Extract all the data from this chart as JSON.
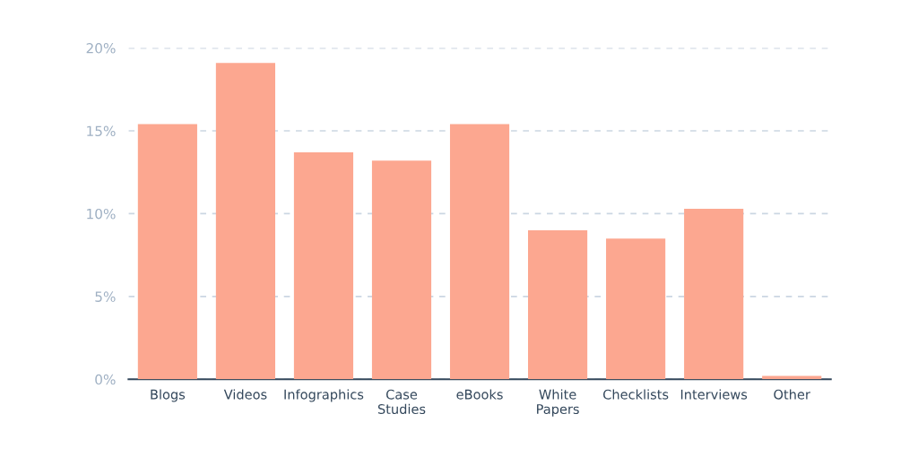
{
  "chart_data": {
    "type": "bar",
    "categories": [
      "Blogs",
      "Videos",
      "Infographics",
      "Case\nStudies",
      "eBooks",
      "White\nPapers",
      "Checklists",
      "Interviews",
      "Other"
    ],
    "values": [
      15.4,
      19.1,
      13.7,
      13.2,
      15.4,
      9.0,
      8.5,
      10.3,
      0.2
    ],
    "color": "#fca790",
    "ylim": [
      0,
      20
    ],
    "yticks": [
      {
        "value": 0,
        "label": "0%"
      },
      {
        "value": 5,
        "label": "5%"
      },
      {
        "value": 10,
        "label": "10%"
      },
      {
        "value": 15,
        "label": "15%"
      },
      {
        "value": 20,
        "label": "20%"
      }
    ],
    "grid": "y",
    "legend": false
  }
}
